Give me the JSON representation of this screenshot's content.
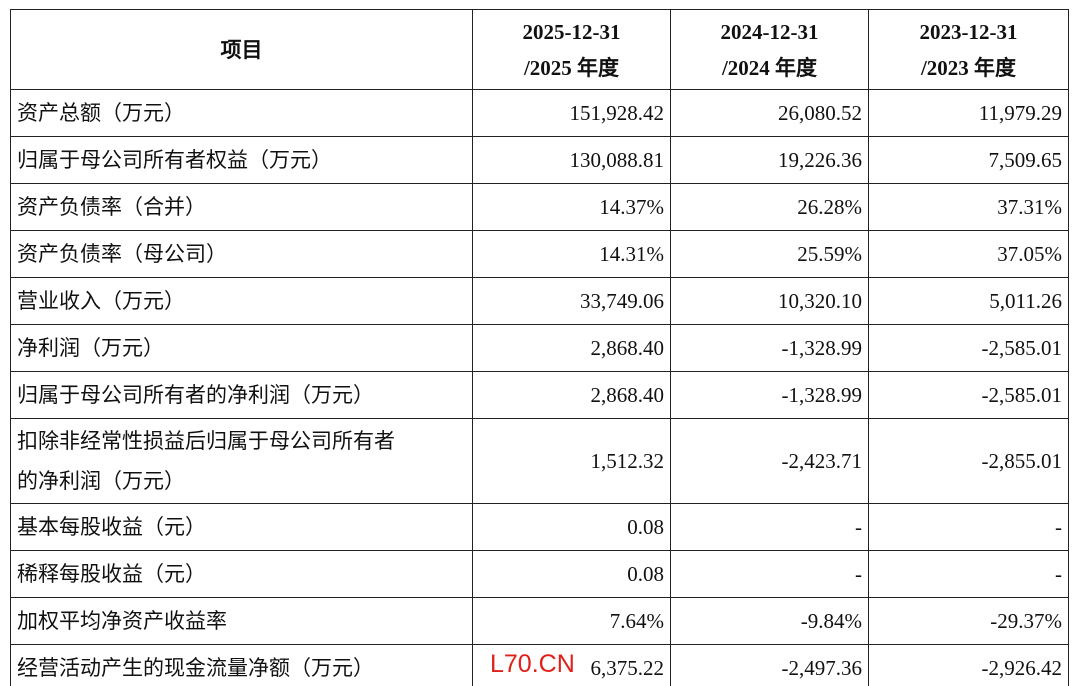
{
  "header": {
    "item": "项目",
    "columns": [
      [
        "2025-12-31",
        "/2025 年度"
      ],
      [
        "2024-12-31",
        "/2024 年度"
      ],
      [
        "2023-12-31",
        "/2023 年度"
      ]
    ]
  },
  "rows": [
    [
      [
        "资产总额（万元）"
      ],
      "151,928.42",
      "26,080.52",
      "11,979.29"
    ],
    [
      [
        "归属于母公司所有者权益（万元）"
      ],
      "130,088.81",
      "19,226.36",
      "7,509.65"
    ],
    [
      [
        "资产负债率（合并）"
      ],
      "14.37%",
      "26.28%",
      "37.31%"
    ],
    [
      [
        "资产负债率（母公司）"
      ],
      "14.31%",
      "25.59%",
      "37.05%"
    ],
    [
      [
        "营业收入（万元）"
      ],
      "33,749.06",
      "10,320.10",
      "5,011.26"
    ],
    [
      [
        "净利润（万元）"
      ],
      "2,868.40",
      "-1,328.99",
      "-2,585.01"
    ],
    [
      [
        "归属于母公司所有者的净利润（万元）"
      ],
      "2,868.40",
      "-1,328.99",
      "-2,585.01"
    ],
    [
      [
        "扣除非经常性损益后归属于母公司所有者",
        "的净利润（万元）"
      ],
      "1,512.32",
      "-2,423.71",
      "-2,855.01"
    ],
    [
      [
        "基本每股收益（元）"
      ],
      "0.08",
      "-",
      "-"
    ],
    [
      [
        "稀释每股收益（元）"
      ],
      "0.08",
      "-",
      "-"
    ],
    [
      [
        "加权平均净资产收益率"
      ],
      "7.64%",
      "-9.84%",
      "-29.37%"
    ],
    [
      [
        "经营活动产生的现金流量净额（万元）"
      ],
      "6,375.22",
      "-2,497.36",
      "-2,926.42"
    ]
  ],
  "watermark": "L70.CN"
}
